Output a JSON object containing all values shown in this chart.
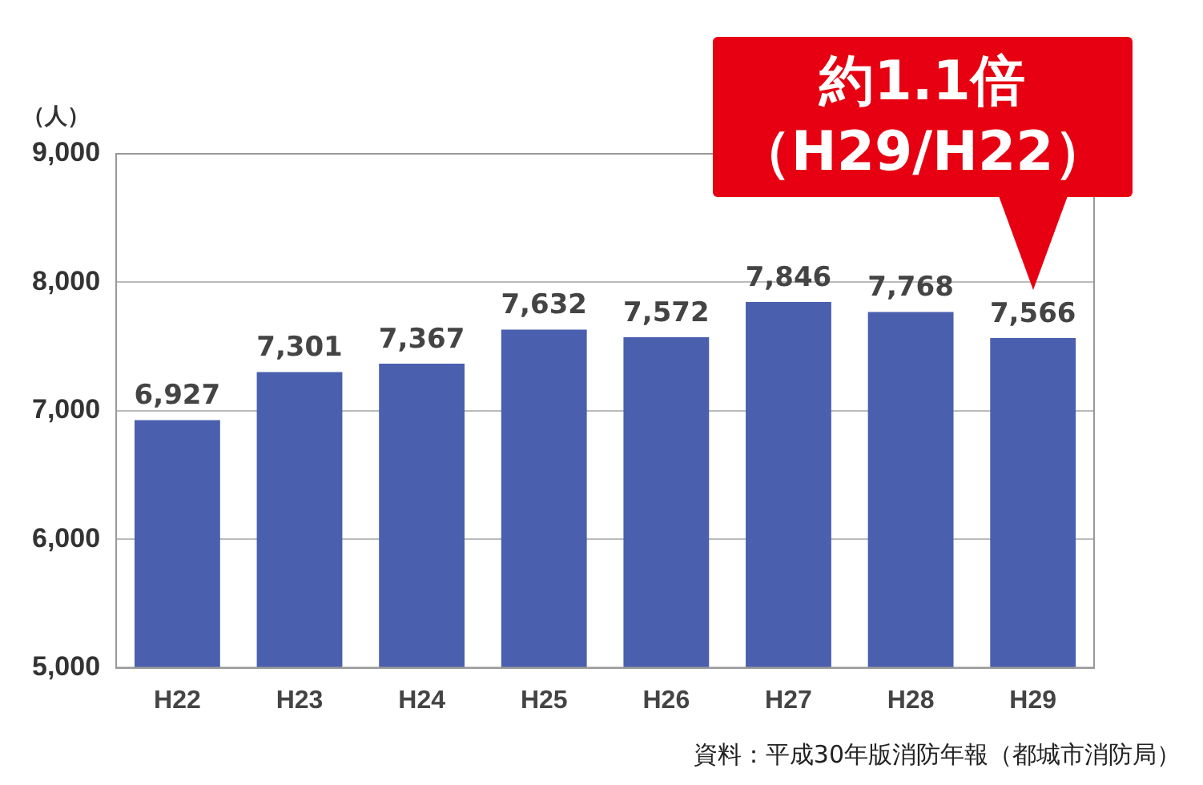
{
  "chart_data": {
    "type": "bar",
    "ylabel": "（人）",
    "categories": [
      "H22",
      "H23",
      "H24",
      "H25",
      "H26",
      "H27",
      "H28",
      "H29"
    ],
    "values": [
      6927,
      7301,
      7367,
      7632,
      7572,
      7846,
      7768,
      7566
    ],
    "value_labels": [
      "6,927",
      "7,301",
      "7,367",
      "7,632",
      "7,572",
      "7,846",
      "7,768",
      "7,566"
    ],
    "color": "#4a5fae",
    "ylim": [
      5000,
      9000
    ],
    "yticks": [
      {
        "value": 5000,
        "label": "5,000"
      },
      {
        "value": 6000,
        "label": "6,000"
      },
      {
        "value": 7000,
        "label": "7,000"
      },
      {
        "value": 8000,
        "label": "8,000"
      },
      {
        "value": 9000,
        "label": "9,000"
      }
    ],
    "grid": "y",
    "annotations": [
      {
        "text": "約1.1倍（H29/H22）",
        "x": "H29",
        "y": 7566
      },
      "資料：平成30年版消防年報（都城市消防局）"
    ]
  }
}
